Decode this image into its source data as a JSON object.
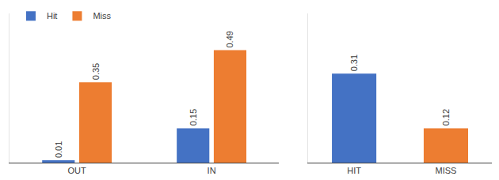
{
  "chart_data": [
    {
      "type": "bar",
      "categories": [
        "OUT",
        "IN"
      ],
      "series": [
        {
          "name": "Hit",
          "color": "#4472c4",
          "values": [
            0.01,
            0.15
          ]
        },
        {
          "name": "Miss",
          "color": "#ed7d31",
          "values": [
            0.35,
            0.49
          ]
        }
      ],
      "ylim": [
        0,
        0.65
      ],
      "legend": "top left",
      "data_labels": true,
      "tick_labels": "x"
    },
    {
      "type": "bar",
      "categories": [
        "HIT",
        "MISS"
      ],
      "values": [
        0.31,
        0.12
      ],
      "colors": [
        "#4472c4",
        "#ed7d31"
      ],
      "ylim": [
        0,
        0.52
      ],
      "data_labels": true,
      "tick_labels": "x"
    }
  ]
}
